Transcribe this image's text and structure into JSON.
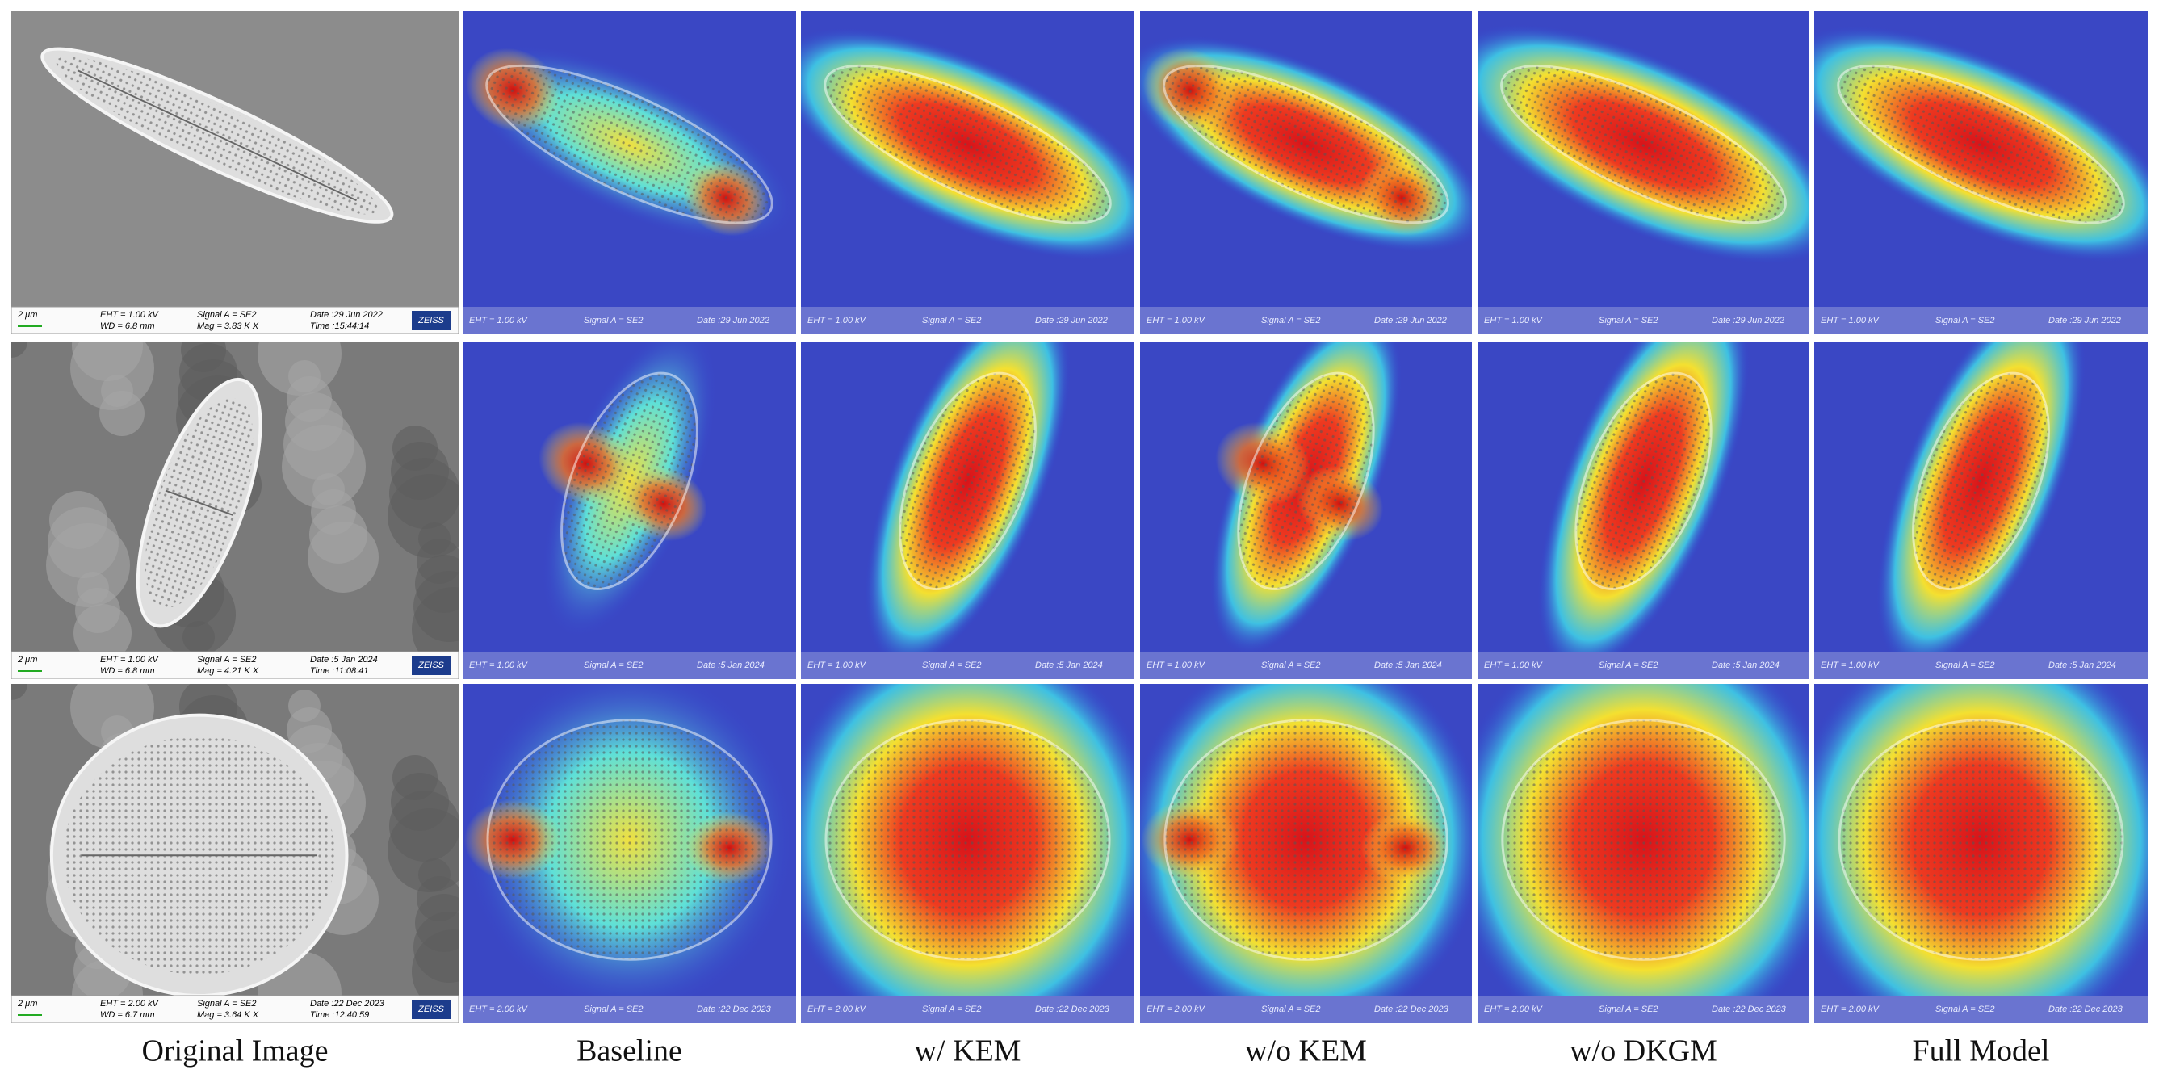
{
  "columns": [
    "Original Image",
    "Baseline",
    "w/ KEM",
    "w/o KEM",
    "w/o DKGM",
    "Full Model"
  ],
  "rows": [
    {
      "scale": "2 μm",
      "eht": "EHT = 1.00 kV",
      "wd": "WD = 6.8 mm",
      "signal": "Signal A = SE2",
      "mag": "Mag = 3.83 K X",
      "date": "Date :29 Jun 2022",
      "time": "Time :15:44:14",
      "logo": "ZEISS"
    },
    {
      "scale": "2 μm",
      "eht": "EHT = 1.00 kV",
      "wd": "WD = 6.8 mm",
      "signal": "Signal A = SE2",
      "mag": "Mag = 4.21 K X",
      "date": "Date :5 Jan 2024",
      "time": "Time :11:08:41",
      "logo": "ZEISS"
    },
    {
      "scale": "2 μm",
      "eht": "EHT = 2.00 kV",
      "wd": "WD = 6.7 mm",
      "signal": "Signal A = SE2",
      "mag": "Mag = 3.64 K X",
      "date": "Date :22 Dec 2023",
      "time": "Time :12:40:59",
      "logo": "ZEISS"
    }
  ]
}
